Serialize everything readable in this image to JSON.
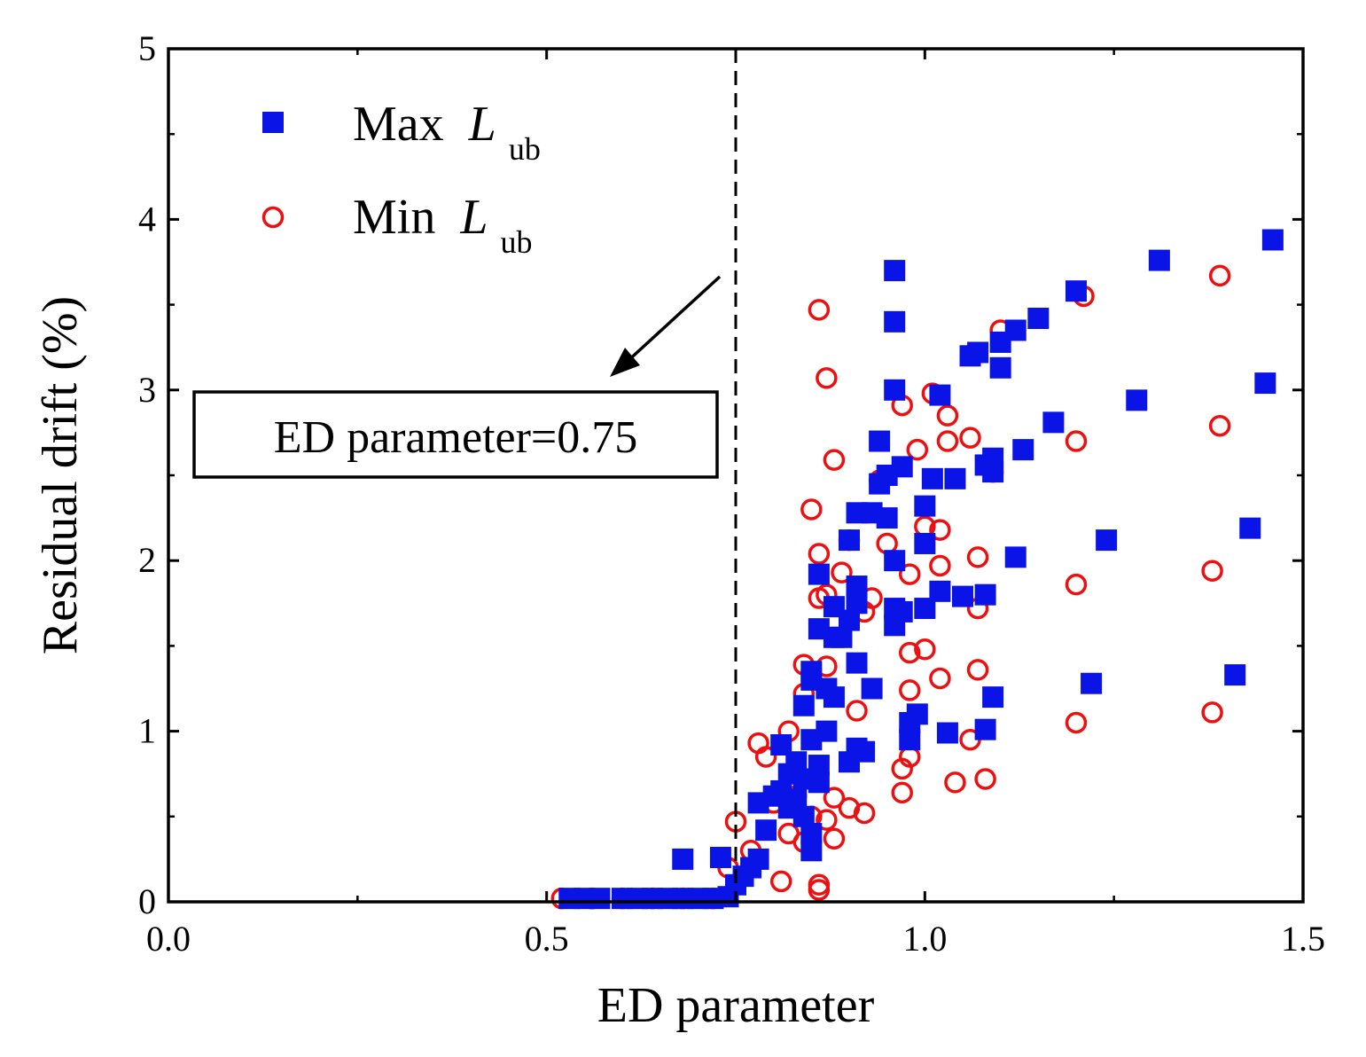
{
  "chart_data": {
    "type": "scatter",
    "title": "",
    "xlabel": "ED parameter",
    "ylabel": "Residual drift (%)",
    "xlim": [
      0.0,
      1.5
    ],
    "ylim": [
      0,
      5
    ],
    "xticks": [
      "0.0",
      "0.5",
      "1.0",
      "1.5"
    ],
    "yticks": [
      "0",
      "1",
      "2",
      "3",
      "4",
      "5"
    ],
    "grid": false,
    "legend_position": "top-left",
    "colors": {
      "max": "#0a14e6",
      "min": "#ee1010",
      "axis": "#000000"
    },
    "reference_line": {
      "x": 0.75,
      "style": "dashed"
    },
    "annotation": {
      "text": "ED parameter=0.75",
      "arrow": true
    },
    "series": [
      {
        "name": "Max",
        "name_italic": "L",
        "name_sub": "ub",
        "marker": "filled-square",
        "color": "#0a14e6",
        "points": [
          [
            0.53,
            0.02
          ],
          [
            0.55,
            0.02
          ],
          [
            0.57,
            0.02
          ],
          [
            0.6,
            0.02
          ],
          [
            0.62,
            0.02
          ],
          [
            0.64,
            0.02
          ],
          [
            0.66,
            0.02
          ],
          [
            0.68,
            0.02
          ],
          [
            0.7,
            0.02
          ],
          [
            0.72,
            0.02
          ],
          [
            0.74,
            0.03
          ],
          [
            0.68,
            0.25
          ],
          [
            0.73,
            0.26
          ],
          [
            0.75,
            0.1
          ],
          [
            0.76,
            0.15
          ],
          [
            0.77,
            0.2
          ],
          [
            0.78,
            0.25
          ],
          [
            0.78,
            0.58
          ],
          [
            0.79,
            0.42
          ],
          [
            0.8,
            0.62
          ],
          [
            0.81,
            0.65
          ],
          [
            0.81,
            0.92
          ],
          [
            0.82,
            0.55
          ],
          [
            0.82,
            0.75
          ],
          [
            0.83,
            0.6
          ],
          [
            0.83,
            0.82
          ],
          [
            0.84,
            0.5
          ],
          [
            0.84,
            0.72
          ],
          [
            0.84,
            1.15
          ],
          [
            0.85,
            0.3
          ],
          [
            0.85,
            0.4
          ],
          [
            0.85,
            0.95
          ],
          [
            0.85,
            1.3
          ],
          [
            0.85,
            1.35
          ],
          [
            0.86,
            0.8
          ],
          [
            0.86,
            0.7
          ],
          [
            0.86,
            1.6
          ],
          [
            0.86,
            1.92
          ],
          [
            0.87,
            1.0
          ],
          [
            0.87,
            1.25
          ],
          [
            0.88,
            1.2
          ],
          [
            0.88,
            1.55
          ],
          [
            0.88,
            1.73
          ],
          [
            0.89,
            1.55
          ],
          [
            0.9,
            0.82
          ],
          [
            0.9,
            1.65
          ],
          [
            0.9,
            2.12
          ],
          [
            0.91,
            0.9
          ],
          [
            0.91,
            1.4
          ],
          [
            0.91,
            1.75
          ],
          [
            0.91,
            1.85
          ],
          [
            0.91,
            2.28
          ],
          [
            0.92,
            0.88
          ],
          [
            0.93,
            1.25
          ],
          [
            0.93,
            2.28
          ],
          [
            0.94,
            2.7
          ],
          [
            0.94,
            2.45
          ],
          [
            0.95,
            2.25
          ],
          [
            0.95,
            2.5
          ],
          [
            0.96,
            1.62
          ],
          [
            0.96,
            1.72
          ],
          [
            0.96,
            2.0
          ],
          [
            0.96,
            3.0
          ],
          [
            0.96,
            3.4
          ],
          [
            0.96,
            3.7
          ],
          [
            0.97,
            1.7
          ],
          [
            0.97,
            2.55
          ],
          [
            0.98,
            1.05
          ],
          [
            0.98,
            0.95
          ],
          [
            0.99,
            1.1
          ],
          [
            1.0,
            1.72
          ],
          [
            1.0,
            2.1
          ],
          [
            1.0,
            2.32
          ],
          [
            1.01,
            2.48
          ],
          [
            1.02,
            1.82
          ],
          [
            1.02,
            2.97
          ],
          [
            1.03,
            0.99
          ],
          [
            1.04,
            2.48
          ],
          [
            1.05,
            1.79
          ],
          [
            1.06,
            3.2
          ],
          [
            1.07,
            3.22
          ],
          [
            1.08,
            1.01
          ],
          [
            1.08,
            1.8
          ],
          [
            1.08,
            2.56
          ],
          [
            1.09,
            1.2
          ],
          [
            1.09,
            2.52
          ],
          [
            1.09,
            2.6
          ],
          [
            1.1,
            3.28
          ],
          [
            1.1,
            3.13
          ],
          [
            1.12,
            3.35
          ],
          [
            1.12,
            2.02
          ],
          [
            1.13,
            2.65
          ],
          [
            1.15,
            3.42
          ],
          [
            1.17,
            2.81
          ],
          [
            1.2,
            3.58
          ],
          [
            1.22,
            1.28
          ],
          [
            1.24,
            2.12
          ],
          [
            1.28,
            2.94
          ],
          [
            1.31,
            3.76
          ],
          [
            1.41,
            1.33
          ],
          [
            1.43,
            2.19
          ],
          [
            1.45,
            3.04
          ],
          [
            1.46,
            3.88
          ]
        ]
      },
      {
        "name": "Min",
        "name_italic": "L",
        "name_sub": "ub",
        "marker": "open-circle",
        "color": "#ee1010",
        "points": [
          [
            0.52,
            0.02
          ],
          [
            0.56,
            0.02
          ],
          [
            0.6,
            0.02
          ],
          [
            0.64,
            0.02
          ],
          [
            0.68,
            0.02
          ],
          [
            0.72,
            0.02
          ],
          [
            0.74,
            0.2
          ],
          [
            0.75,
            0.47
          ],
          [
            0.77,
            0.3
          ],
          [
            0.78,
            0.93
          ],
          [
            0.79,
            0.85
          ],
          [
            0.8,
            0.58
          ],
          [
            0.81,
            0.12
          ],
          [
            0.82,
            0.4
          ],
          [
            0.82,
            1.0
          ],
          [
            0.83,
            0.62
          ],
          [
            0.84,
            0.35
          ],
          [
            0.84,
            1.22
          ],
          [
            0.84,
            1.39
          ],
          [
            0.85,
            0.5
          ],
          [
            0.85,
            2.3
          ],
          [
            0.86,
            0.1
          ],
          [
            0.86,
            0.07
          ],
          [
            0.86,
            1.78
          ],
          [
            0.86,
            2.04
          ],
          [
            0.86,
            3.47
          ],
          [
            0.87,
            0.48
          ],
          [
            0.87,
            1.38
          ],
          [
            0.87,
            1.8
          ],
          [
            0.87,
            3.07
          ],
          [
            0.88,
            0.37
          ],
          [
            0.88,
            0.61
          ],
          [
            0.88,
            2.59
          ],
          [
            0.89,
            1.93
          ],
          [
            0.9,
            0.55
          ],
          [
            0.9,
            2.12
          ],
          [
            0.91,
            1.12
          ],
          [
            0.92,
            0.52
          ],
          [
            0.92,
            1.7
          ],
          [
            0.93,
            1.78
          ],
          [
            0.94,
            2.47
          ],
          [
            0.95,
            2.1
          ],
          [
            0.97,
            0.78
          ],
          [
            0.97,
            0.64
          ],
          [
            0.97,
            2.91
          ],
          [
            0.98,
            0.85
          ],
          [
            0.98,
            1.24
          ],
          [
            0.98,
            1.46
          ],
          [
            0.98,
            1.92
          ],
          [
            0.99,
            2.65
          ],
          [
            1.0,
            1.48
          ],
          [
            1.0,
            2.2
          ],
          [
            1.01,
            2.98
          ],
          [
            1.02,
            1.31
          ],
          [
            1.02,
            1.97
          ],
          [
            1.02,
            2.18
          ],
          [
            1.03,
            2.7
          ],
          [
            1.03,
            2.85
          ],
          [
            1.04,
            0.7
          ],
          [
            1.06,
            0.95
          ],
          [
            1.06,
            2.72
          ],
          [
            1.07,
            1.36
          ],
          [
            1.07,
            1.72
          ],
          [
            1.07,
            2.02
          ],
          [
            1.08,
            0.72
          ],
          [
            1.09,
            2.52
          ],
          [
            1.1,
            3.35
          ],
          [
            1.2,
            1.05
          ],
          [
            1.2,
            1.86
          ],
          [
            1.2,
            2.7
          ],
          [
            1.21,
            3.55
          ],
          [
            1.38,
            1.11
          ],
          [
            1.38,
            1.94
          ],
          [
            1.39,
            2.79
          ],
          [
            1.39,
            3.67
          ]
        ]
      }
    ]
  }
}
